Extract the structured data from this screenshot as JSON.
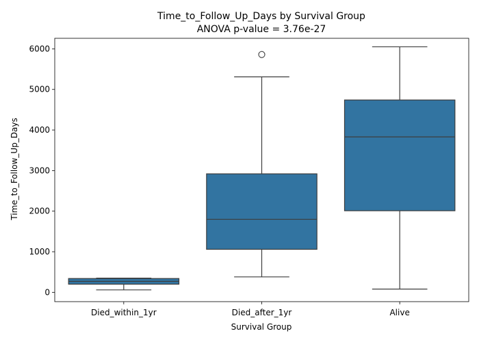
{
  "chart_data": {
    "type": "box",
    "title_lines": [
      "Time_to_Follow_Up_Days by Survival Group",
      "ANOVA p-value = 3.76e-27"
    ],
    "xlabel": "Survival Group",
    "ylabel": "Time_to_Follow_Up_Days",
    "ylim": [
      -230,
      6260
    ],
    "yticks": [
      0,
      1000,
      2000,
      3000,
      4000,
      5000,
      6000
    ],
    "ytick_labels": [
      "0",
      "1000",
      "2000",
      "3000",
      "4000",
      "5000",
      "6000"
    ],
    "box_color": "#3274a1",
    "grid": false,
    "categories": [
      "Died_within_1yr",
      "Died_after_1yr",
      "Alive"
    ],
    "boxes": [
      {
        "category": "Died_within_1yr",
        "whisker_low": 60,
        "q1": 200,
        "median": 270,
        "q3": 340,
        "whisker_high": 350,
        "outliers": []
      },
      {
        "category": "Died_after_1yr",
        "whisker_low": 380,
        "q1": 1060,
        "median": 1800,
        "q3": 2920,
        "whisker_high": 5310,
        "outliers": [
          5860
        ]
      },
      {
        "category": "Alive",
        "whisker_low": 80,
        "q1": 2010,
        "median": 3830,
        "q3": 4740,
        "whisker_high": 6050,
        "outliers": []
      }
    ]
  }
}
